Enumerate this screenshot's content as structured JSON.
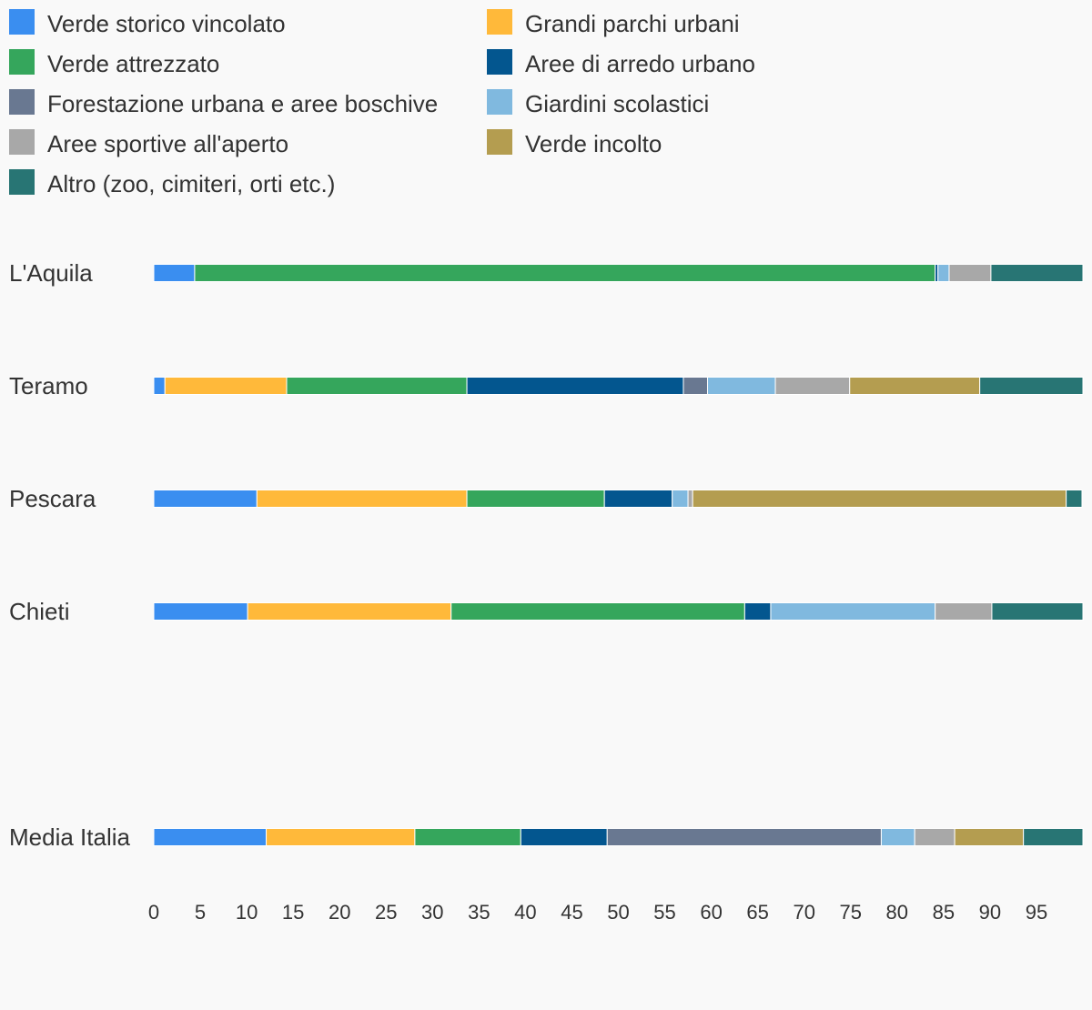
{
  "chart_data": {
    "type": "bar",
    "orientation": "horizontal",
    "stacked": true,
    "title": "",
    "xlabel": "",
    "ylabel": "",
    "xlim": [
      0,
      100
    ],
    "x_ticks": [
      0,
      5,
      10,
      15,
      20,
      25,
      30,
      35,
      40,
      45,
      50,
      55,
      60,
      65,
      70,
      75,
      80,
      85,
      90,
      95
    ],
    "grid": false,
    "legend_position": "top",
    "categories": [
      "L'Aquila",
      "Teramo",
      "Pescara",
      "Chieti",
      "",
      "Media Italia"
    ],
    "series": [
      {
        "name": "Verde storico vincolato",
        "color": "#3a8ef0",
        "values": [
          4.4,
          1.2,
          11.1,
          10.1,
          null,
          12.1
        ]
      },
      {
        "name": "Grandi parchi urbani",
        "color": "#ffb93a",
        "values": [
          0,
          13.1,
          22.6,
          21.9,
          null,
          16.0
        ]
      },
      {
        "name": "Verde attrezzato",
        "color": "#35a65c",
        "values": [
          79.7,
          19.4,
          14.8,
          31.6,
          null,
          11.4
        ]
      },
      {
        "name": "Aree di arredo urbano",
        "color": "#03568f",
        "values": [
          0.3,
          23.3,
          7.3,
          2.8,
          null,
          9.3
        ]
      },
      {
        "name": "Forestazione urbana e aree boschive",
        "color": "#697891",
        "values": [
          0,
          2.6,
          0,
          0,
          null,
          29.5
        ]
      },
      {
        "name": "Giardini scolastici",
        "color": "#80b9df",
        "values": [
          1.2,
          7.3,
          1.7,
          17.7,
          null,
          3.6
        ]
      },
      {
        "name": "Aree sportive all'aperto",
        "color": "#a8a8a8",
        "values": [
          4.5,
          8.0,
          0.5,
          6.1,
          null,
          4.3
        ]
      },
      {
        "name": "Verde incolto",
        "color": "#b49d50",
        "values": [
          0,
          14.0,
          40.2,
          0,
          null,
          7.4
        ]
      },
      {
        "name": "Altro (zoo, cimiteri, orti etc.)",
        "color": "#287574",
        "values": [
          9.9,
          11.1,
          1.7,
          9.8,
          null,
          6.4
        ]
      }
    ]
  }
}
